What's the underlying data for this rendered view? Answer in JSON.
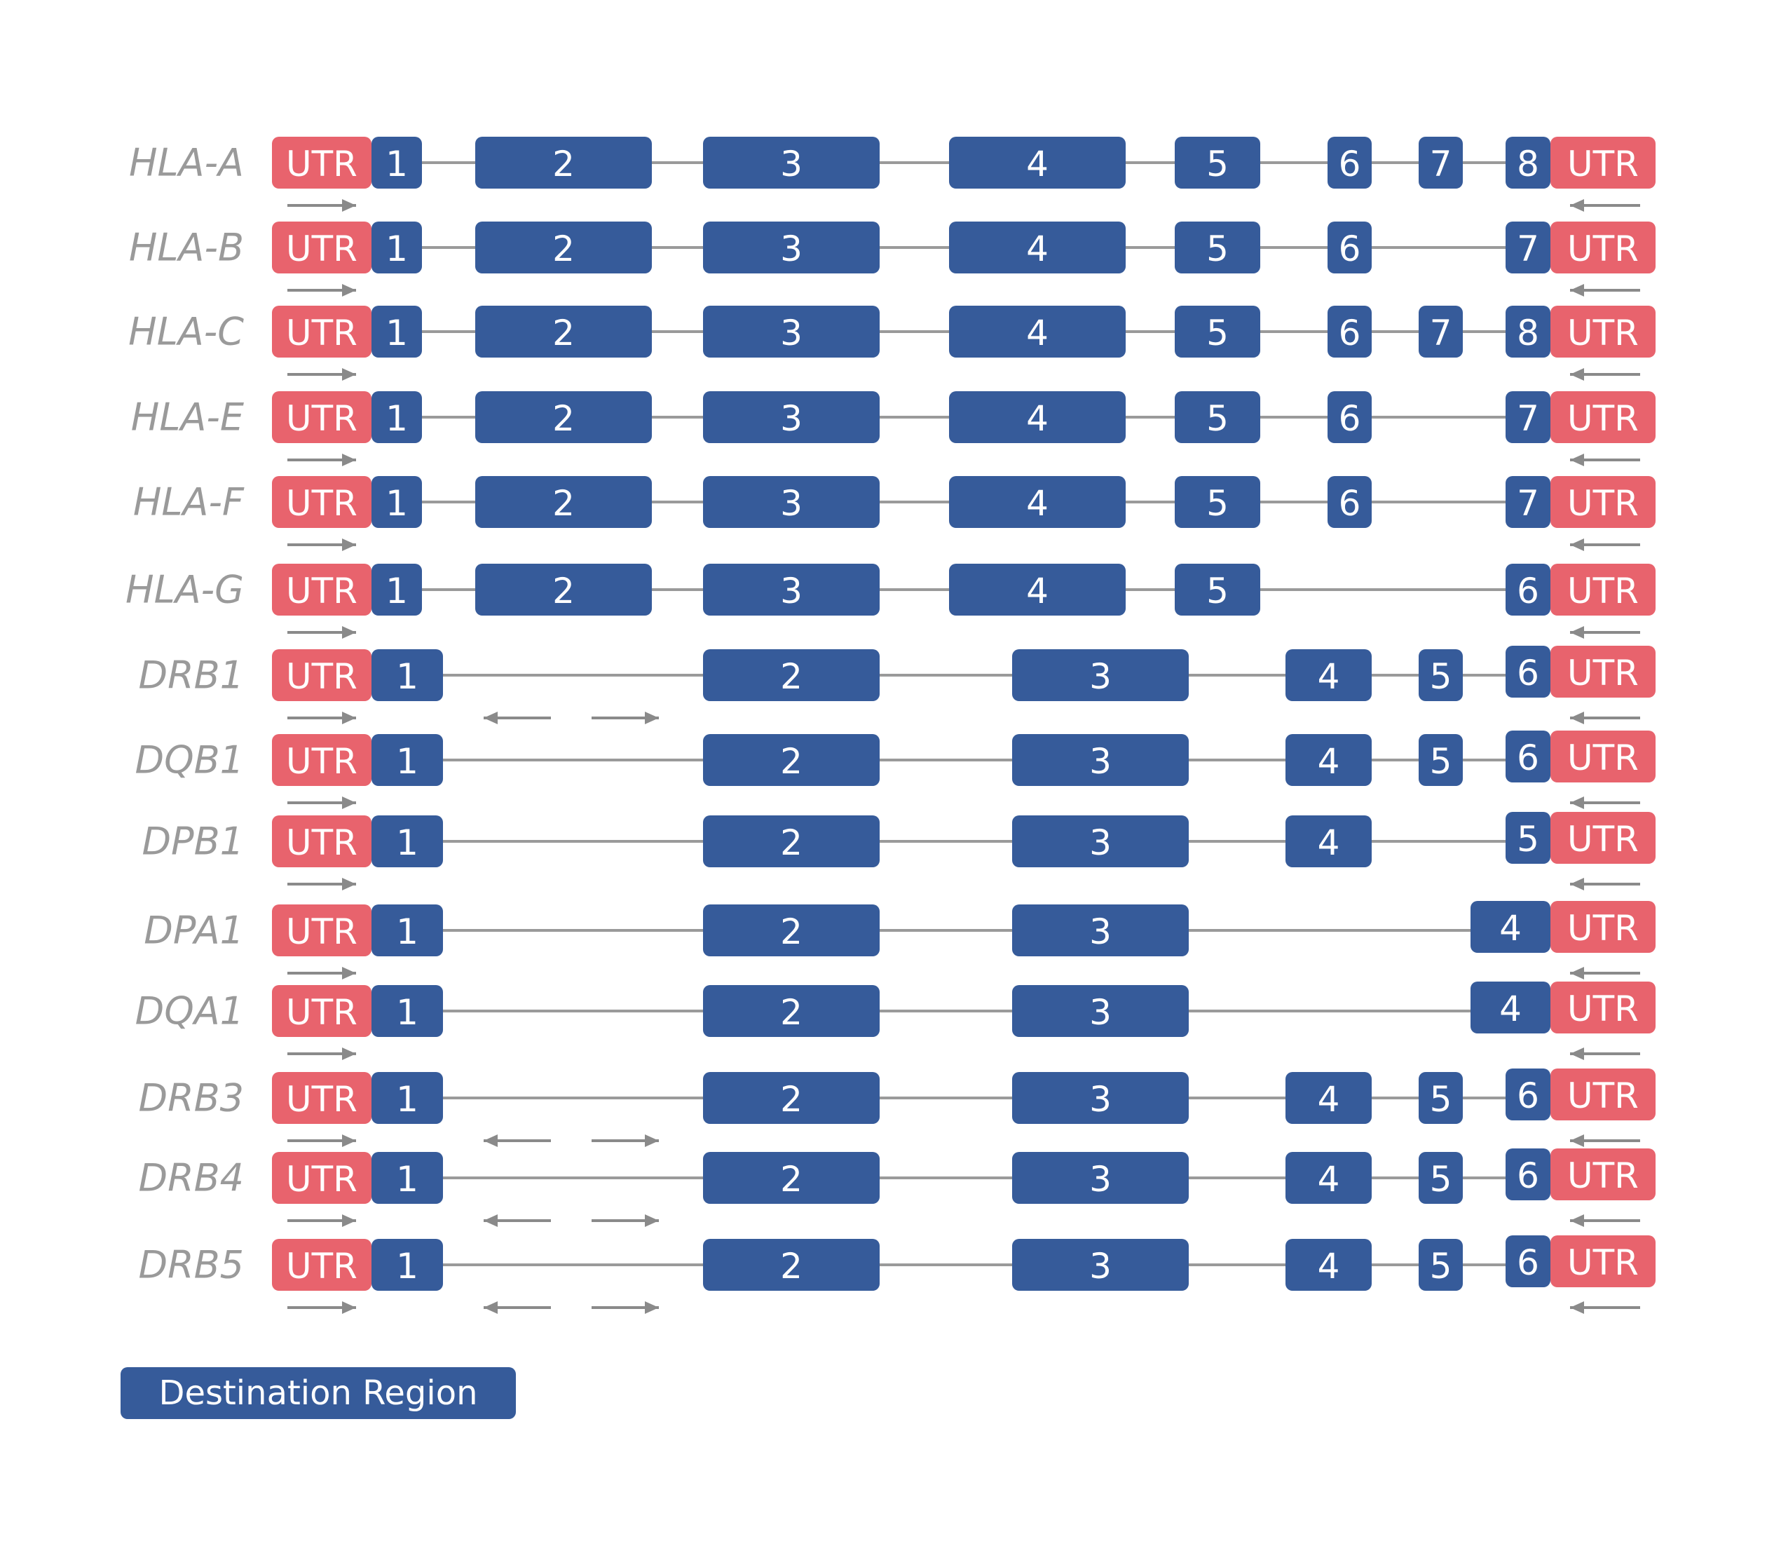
{
  "colors": {
    "exon": "#365b9a",
    "utr": "#e8636d",
    "intron": "#9a9a9a",
    "label": "#9a9a9a",
    "arrow": "#8a8a8a"
  },
  "utr_label": "UTR",
  "legend": {
    "label": "Destination Region"
  },
  "genes": [
    {
      "name": "HLA-A",
      "exons": [
        "1",
        "2",
        "3",
        "4",
        "5",
        "6",
        "7",
        "8"
      ],
      "primers": "utr-only"
    },
    {
      "name": "HLA-B",
      "exons": [
        "1",
        "2",
        "3",
        "4",
        "5",
        "6",
        "7"
      ],
      "primers": "utr-only"
    },
    {
      "name": "HLA-C",
      "exons": [
        "1",
        "2",
        "3",
        "4",
        "5",
        "6",
        "7",
        "8"
      ],
      "primers": "utr-only"
    },
    {
      "name": "HLA-E",
      "exons": [
        "1",
        "2",
        "3",
        "4",
        "5",
        "6",
        "7"
      ],
      "primers": "utr-only"
    },
    {
      "name": "HLA-F",
      "exons": [
        "1",
        "2",
        "3",
        "4",
        "5",
        "6",
        "7"
      ],
      "primers": "utr-only"
    },
    {
      "name": "HLA-G",
      "exons": [
        "1",
        "2",
        "3",
        "4",
        "5",
        "6"
      ],
      "primers": "utr-only"
    },
    {
      "name": "DRB1",
      "exons": [
        "1",
        "2",
        "3",
        "4",
        "5",
        "6"
      ],
      "primers": "utr-and-intron1"
    },
    {
      "name": "DQB1",
      "exons": [
        "1",
        "2",
        "3",
        "4",
        "5",
        "6"
      ],
      "primers": "utr-only"
    },
    {
      "name": "DPB1",
      "exons": [
        "1",
        "2",
        "3",
        "4",
        "5"
      ],
      "primers": "utr-only"
    },
    {
      "name": "DPA1",
      "exons": [
        "1",
        "2",
        "3",
        "4"
      ],
      "primers": "utr-only"
    },
    {
      "name": "DQA1",
      "exons": [
        "1",
        "2",
        "3",
        "4"
      ],
      "primers": "utr-only"
    },
    {
      "name": "DRB3",
      "exons": [
        "1",
        "2",
        "3",
        "4",
        "5",
        "6"
      ],
      "primers": "utr-and-intron1"
    },
    {
      "name": "DRB4",
      "exons": [
        "1",
        "2",
        "3",
        "4",
        "5",
        "6"
      ],
      "primers": "utr-and-intron1"
    },
    {
      "name": "DRB5",
      "exons": [
        "1",
        "2",
        "3",
        "4",
        "5",
        "6"
      ],
      "primers": "utr-and-intron1"
    }
  ]
}
